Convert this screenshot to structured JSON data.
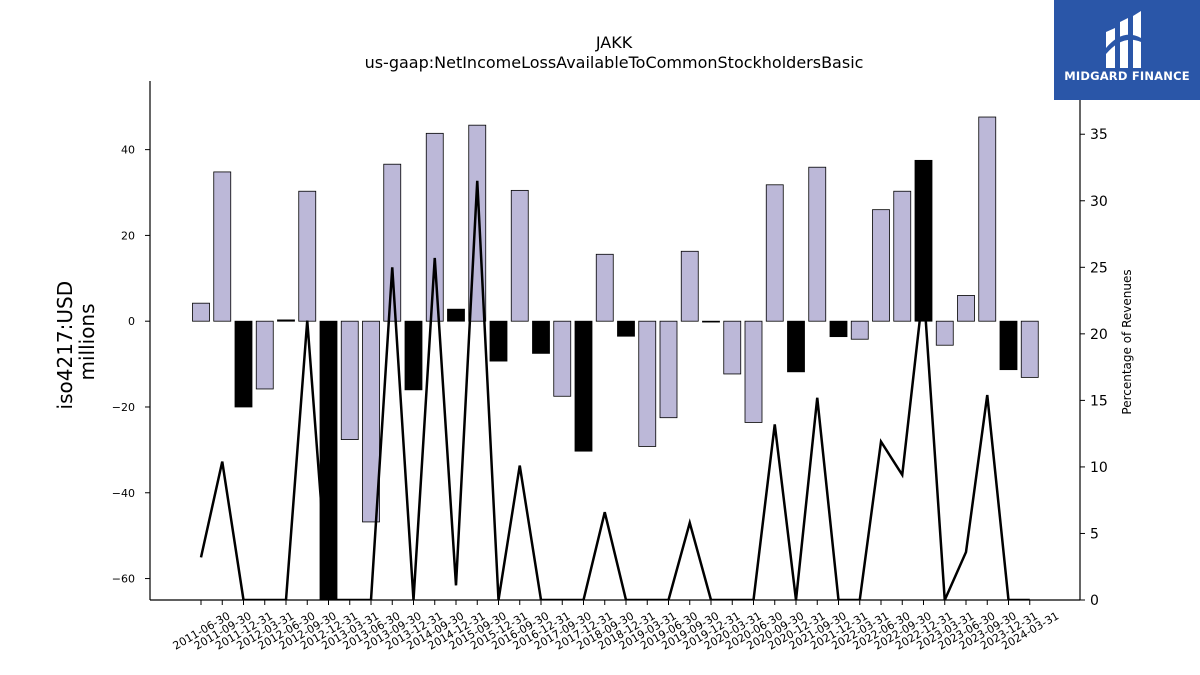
{
  "chart_data": {
    "type": "bar",
    "title": "JAKK",
    "subtitle": "us-gaap:NetIncomeLossAvailableToCommonStockholdersBasic",
    "ylabel": "iso4217:USD\nmillions",
    "y2label": "Percentage of Revenues",
    "ylim": [
      -65,
      56
    ],
    "y2lim": [
      0,
      39
    ],
    "yticks": [
      -60,
      -40,
      -20,
      0,
      20,
      40
    ],
    "y2ticks": [
      0,
      5,
      10,
      15,
      20,
      25,
      30,
      35
    ],
    "grid": false,
    "categories": [
      "2011-06-30",
      "2011-09-30",
      "2011-12-31",
      "2012-03-31",
      "2012-06-30",
      "2012-09-30",
      "2012-12-31",
      "2013-03-31",
      "2013-06-30",
      "2013-09-30",
      "2013-12-31",
      "2014-09-30",
      "2014-12-31",
      "2015-09-30",
      "2015-12-31",
      "2016-09-30",
      "2016-12-31",
      "2017-09-30",
      "2017-12-31",
      "2018-09-30",
      "2018-12-31",
      "2019-03-31",
      "2019-06-30",
      "2019-09-30",
      "2019-12-31",
      "2020-03-31",
      "2020-06-30",
      "2020-09-30",
      "2020-12-31",
      "2021-09-30",
      "2021-12-31",
      "2022-03-31",
      "2022-06-30",
      "2022-09-30",
      "2022-12-31",
      "2023-03-31",
      "2023-06-30",
      "2023-09-30",
      "2023-12-31",
      "2024-03-31"
    ],
    "series": [
      {
        "type": "bar",
        "values": [
          4.2,
          34.8,
          -20.0,
          -15.8,
          0.3,
          30.3,
          -66.0,
          -27.6,
          -46.8,
          36.6,
          -16.0,
          43.8,
          2.8,
          45.7,
          -9.3,
          30.5,
          -7.5,
          -17.5,
          -30.3,
          15.6,
          -3.5,
          -29.2,
          -22.5,
          16.3,
          -0.2,
          -12.3,
          -23.6,
          31.8,
          -11.8,
          35.9,
          -3.6,
          -4.2,
          26.0,
          30.3,
          37.5,
          -5.6,
          6.0,
          47.6,
          -11.3,
          -13.1
        ],
        "fill_colors": [
          "#bcb8d8",
          "#bcb8d8",
          "#000000",
          "#bcb8d8",
          "#000000",
          "#bcb8d8",
          "#000000",
          "#bcb8d8",
          "#bcb8d8",
          "#bcb8d8",
          "#000000",
          "#bcb8d8",
          "#000000",
          "#bcb8d8",
          "#000000",
          "#bcb8d8",
          "#000000",
          "#bcb8d8",
          "#000000",
          "#bcb8d8",
          "#000000",
          "#bcb8d8",
          "#bcb8d8",
          "#bcb8d8",
          "#000000",
          "#bcb8d8",
          "#bcb8d8",
          "#bcb8d8",
          "#000000",
          "#bcb8d8",
          "#000000",
          "#bcb8d8",
          "#bcb8d8",
          "#bcb8d8",
          "#000000",
          "#bcb8d8",
          "#bcb8d8",
          "#bcb8d8",
          "#000000",
          "#bcb8d8"
        ]
      },
      {
        "type": "line",
        "axis": "right",
        "color": "#000000",
        "values": [
          3.2,
          10.4,
          0.0,
          0.0,
          0.0,
          21.0,
          0.0,
          0.0,
          0.0,
          25.0,
          0.0,
          25.7,
          1.1,
          31.5,
          0.0,
          10.1,
          0.0,
          0.0,
          0.0,
          6.6,
          0.0,
          0.0,
          0.0,
          5.8,
          0.0,
          0.0,
          0.0,
          13.2,
          0.0,
          15.2,
          0.0,
          0.0,
          11.9,
          9.4,
          23.5,
          0.0,
          3.6,
          15.4,
          0.0,
          0.0
        ]
      }
    ]
  },
  "logo": {
    "text": "MIDGARD FINANCE",
    "background": "#2a56a8"
  }
}
